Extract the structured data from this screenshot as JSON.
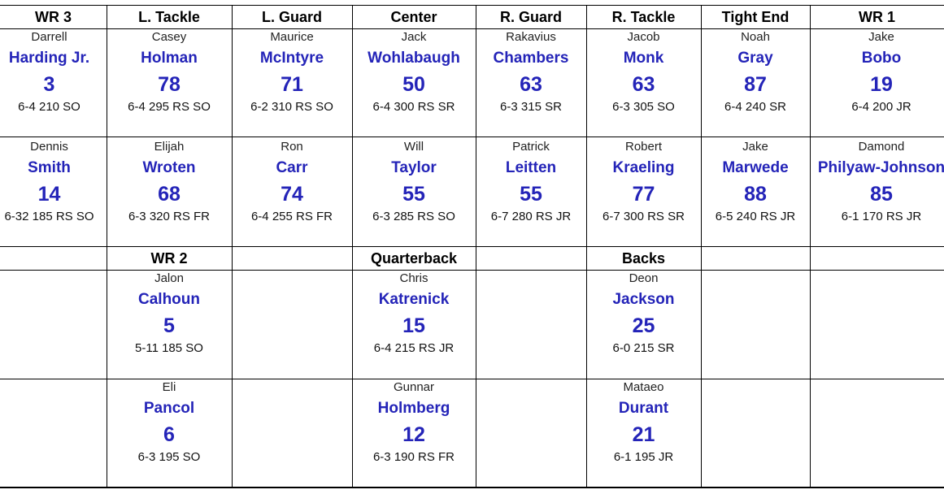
{
  "headers": {
    "wr3": "WR 3",
    "left_tackle": "L. Tackle",
    "left_guard": "L. Guard",
    "center": "Center",
    "right_guard": "R. Guard",
    "right_tackle": "R. Tackle",
    "tight_end": "Tight End",
    "wr1": "WR 1",
    "wr2": "WR 2",
    "quarterback": "Quarterback",
    "backs": "Backs"
  },
  "players": {
    "wr3_1": {
      "first": "Darrell",
      "last": "Harding Jr.",
      "number": "3",
      "info": "6-4  210  SO"
    },
    "wr3_2": {
      "first": "Dennis",
      "last": "Smith",
      "number": "14",
      "info": "6-32 185  RS SO"
    },
    "lt_1": {
      "first": "Casey",
      "last": "Holman",
      "number": "78",
      "info": "6-4  295  RS SO"
    },
    "lt_2": {
      "first": "Elijah",
      "last": "Wroten",
      "number": "68",
      "info": "6-3  320  RS FR"
    },
    "lg_1": {
      "first": "Maurice",
      "last": "McIntyre",
      "number": "71",
      "info": "6-2  310 RS SO"
    },
    "lg_2": {
      "first": "Ron",
      "last": "Carr",
      "number": "74",
      "info": "6-4  255 RS FR"
    },
    "c_1": {
      "first": "Jack",
      "last": "Wohlabaugh",
      "number": "50",
      "info": "6-4  300  RS SR"
    },
    "c_2": {
      "first": "Will",
      "last": "Taylor",
      "number": "55",
      "info": "6-3  285 RS SO"
    },
    "rg_1": {
      "first": "Rakavius",
      "last": "Chambers",
      "number": "63",
      "info": "6-3  315  SR"
    },
    "rg_2": {
      "first": "Patrick",
      "last": "Leitten",
      "number": "55",
      "info": "6-7  280 RS JR"
    },
    "rt_1": {
      "first": "Jacob",
      "last": "Monk",
      "number": "63",
      "info": "6-3  305  SO"
    },
    "rt_2": {
      "first": "Robert",
      "last": "Kraeling",
      "number": "77",
      "info": "6-7  300 RS SR"
    },
    "te_1": {
      "first": "Noah",
      "last": "Gray",
      "number": "87",
      "info": "6-4  240  SR"
    },
    "te_2": {
      "first": "Jake",
      "last": "Marwede",
      "number": "88",
      "info": "6-5  240  RS JR"
    },
    "wr1_1": {
      "first": "Jake",
      "last": "Bobo",
      "number": "19",
      "info": "6-4  200  JR"
    },
    "wr1_2": {
      "first": "Damond",
      "last": "Philyaw-Johnson",
      "number": "85",
      "info": "6-1  170  RS JR"
    },
    "wr2_1": {
      "first": "Jalon",
      "last": "Calhoun",
      "number": "5",
      "info": "5-11  185  SO"
    },
    "wr2_2": {
      "first": "Eli",
      "last": "Pancol",
      "number": "6",
      "info": "6-3  195  SO"
    },
    "qb_1": {
      "first": "Chris",
      "last": "Katrenick",
      "number": "15",
      "info": "6-4  215  RS JR"
    },
    "qb_2": {
      "first": "Gunnar",
      "last": "Holmberg",
      "number": "12",
      "info": "6-3  190  RS FR"
    },
    "rb_1": {
      "first": "Deon",
      "last": "Jackson",
      "number": "25",
      "info": "6-0  215  SR"
    },
    "rb_2": {
      "first": "Mataeo",
      "last": "Durant",
      "number": "21",
      "info": "6-1  195  JR"
    }
  }
}
